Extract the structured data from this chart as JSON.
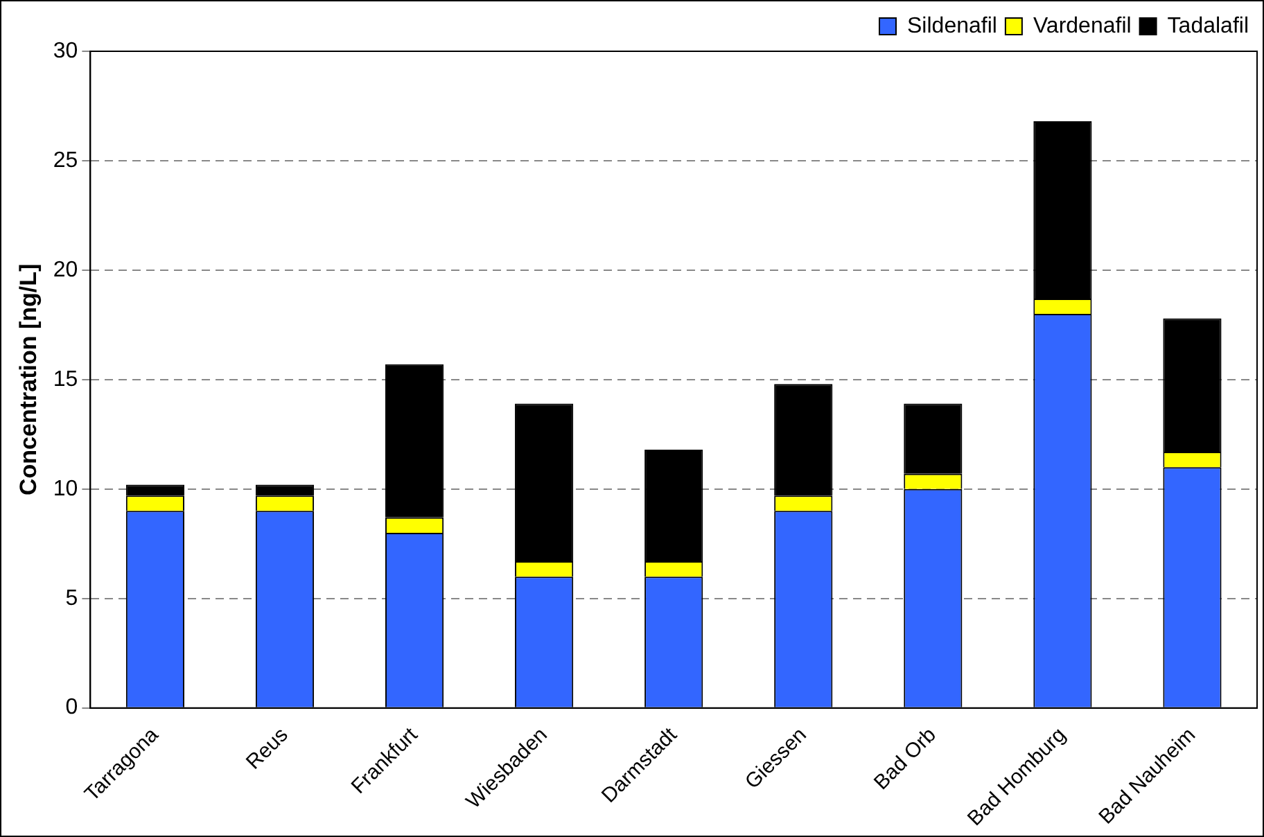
{
  "chart_data": {
    "type": "bar",
    "stacked": true,
    "ylabel": "Concentration [ng/L]",
    "categories": [
      "Tarragona",
      "Reus",
      "Frankfurt",
      "Wiesbaden",
      "Darmstadt",
      "Giessen",
      "Bad Orb",
      "Bad Homburg",
      "Bad Nauheim"
    ],
    "series": [
      {
        "name": "Sildenafil",
        "color": "#3366ff",
        "values": [
          9,
          9,
          8,
          6,
          6,
          9,
          10,
          18,
          11
        ]
      },
      {
        "name": "Vardenafil",
        "color": "#ffff00",
        "values": [
          0.7,
          0.7,
          0.7,
          0.7,
          0.7,
          0.7,
          0.7,
          0.7,
          0.7
        ]
      },
      {
        "name": "Tadalafil",
        "color": "#000000",
        "values": [
          0.5,
          0.5,
          7.0,
          7.2,
          5.1,
          5.1,
          3.2,
          8.1,
          6.1
        ]
      }
    ],
    "ylim": [
      0,
      30
    ],
    "yticks": [
      0,
      5,
      10,
      15,
      20,
      25,
      30
    ],
    "grid": "y",
    "legend": "top right"
  }
}
